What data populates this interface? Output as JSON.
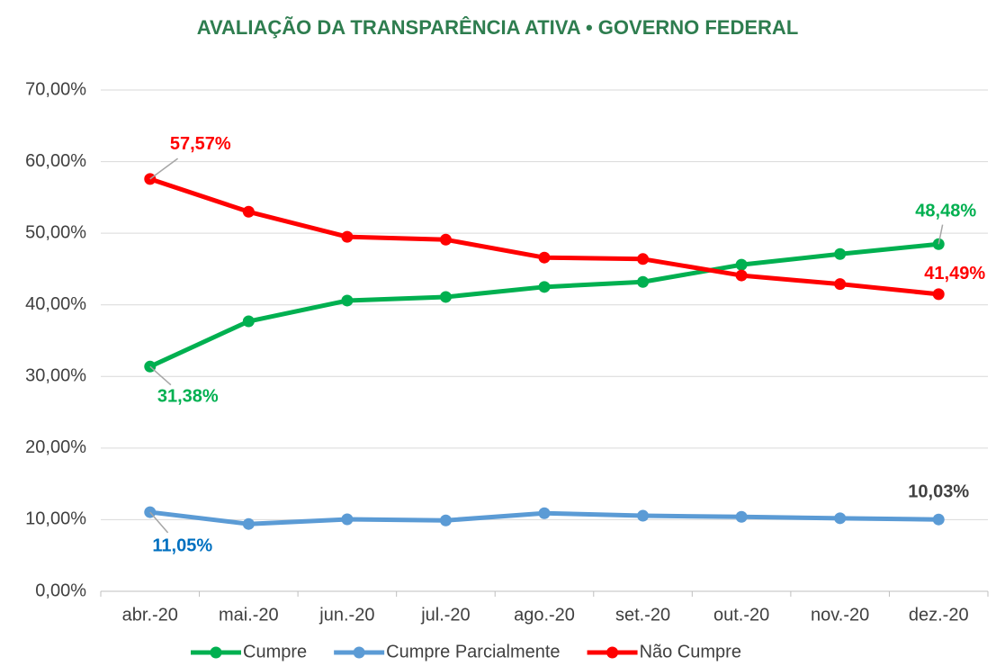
{
  "chart_data": {
    "type": "line",
    "title": "AVALIAÇÃO DA TRANSPARÊNCIA ATIVA • GOVERNO FEDERAL",
    "categories": [
      "abr.-20",
      "mai.-20",
      "jun.-20",
      "jul.-20",
      "ago.-20",
      "set.-20",
      "out.-20",
      "nov.-20",
      "dez.-20"
    ],
    "series": [
      {
        "name": "Cumpre",
        "color": "#00b050",
        "values": [
          31.38,
          37.7,
          40.6,
          41.1,
          42.5,
          43.2,
          45.6,
          47.1,
          48.48
        ],
        "value_labels": [
          "31,38%",
          null,
          null,
          null,
          null,
          null,
          null,
          null,
          "48,48%"
        ]
      },
      {
        "name": "Cumpre Parcialmente",
        "color": "#5b9bd5",
        "values": [
          11.05,
          9.4,
          10.05,
          9.9,
          10.9,
          10.55,
          10.4,
          10.2,
          10.03
        ],
        "value_labels": [
          "11,05%",
          null,
          null,
          null,
          null,
          null,
          null,
          null,
          "10,03%"
        ],
        "value_label_colors": [
          "#0070c0",
          null,
          null,
          null,
          null,
          null,
          null,
          null,
          "#404040"
        ]
      },
      {
        "name": "Não Cumpre",
        "color": "#ff0000",
        "values": [
          57.57,
          53.0,
          49.5,
          49.1,
          46.6,
          46.4,
          44.1,
          42.9,
          41.49
        ],
        "value_labels": [
          "57,57%",
          null,
          null,
          null,
          null,
          null,
          null,
          null,
          "41,49%"
        ]
      }
    ],
    "ylim": [
      0,
      70
    ],
    "yticks": [
      {
        "value": 0,
        "label": "0,00%"
      },
      {
        "value": 10,
        "label": "10,00%"
      },
      {
        "value": 20,
        "label": "20,00%"
      },
      {
        "value": 30,
        "label": "30,00%"
      },
      {
        "value": 40,
        "label": "40,00%"
      },
      {
        "value": 50,
        "label": "50,00%"
      },
      {
        "value": 60,
        "label": "60,00%"
      },
      {
        "value": 70,
        "label": "70,00%"
      }
    ],
    "grid": true,
    "legend": "bottom"
  }
}
